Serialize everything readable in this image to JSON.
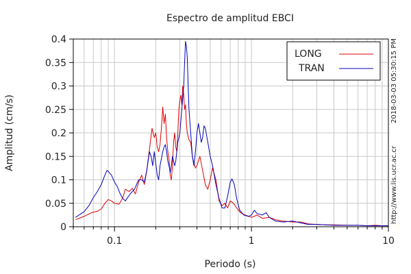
{
  "chart_data": {
    "type": "line",
    "title": "Espectro de amplitud EBCI",
    "xlabel": "Periodo (s)",
    "ylabel": "Amplitud (cm/s)",
    "xscale": "log",
    "xlim": [
      0.05,
      10
    ],
    "ylim": [
      0,
      0.4
    ],
    "x_ticks": [
      {
        "value": 0.1,
        "label": "0.1"
      },
      {
        "value": 1,
        "label": "1"
      },
      {
        "value": 10,
        "label": "10"
      }
    ],
    "y_ticks": [
      {
        "value": 0,
        "label": "0"
      },
      {
        "value": 0.05,
        "label": "0.05"
      },
      {
        "value": 0.1,
        "label": "0.1"
      },
      {
        "value": 0.15,
        "label": "0.15"
      },
      {
        "value": 0.2,
        "label": "0.2"
      },
      {
        "value": 0.25,
        "label": "0.25"
      },
      {
        "value": 0.3,
        "label": "0.3"
      },
      {
        "value": 0.35,
        "label": "0.35"
      },
      {
        "value": 0.4,
        "label": "0.4"
      }
    ],
    "grid": true,
    "legend_position": "top-right",
    "series": [
      {
        "name": "LONG",
        "color": "#dd0000",
        "points": [
          [
            0.052,
            0.015
          ],
          [
            0.06,
            0.022
          ],
          [
            0.068,
            0.03
          ],
          [
            0.075,
            0.033
          ],
          [
            0.08,
            0.038
          ],
          [
            0.085,
            0.05
          ],
          [
            0.09,
            0.058
          ],
          [
            0.095,
            0.055
          ],
          [
            0.1,
            0.05
          ],
          [
            0.108,
            0.048
          ],
          [
            0.115,
            0.062
          ],
          [
            0.12,
            0.08
          ],
          [
            0.128,
            0.075
          ],
          [
            0.135,
            0.082
          ],
          [
            0.142,
            0.07
          ],
          [
            0.15,
            0.095
          ],
          [
            0.158,
            0.11
          ],
          [
            0.165,
            0.09
          ],
          [
            0.172,
            0.12
          ],
          [
            0.18,
            0.165
          ],
          [
            0.188,
            0.21
          ],
          [
            0.195,
            0.19
          ],
          [
            0.2,
            0.2
          ],
          [
            0.205,
            0.17
          ],
          [
            0.21,
            0.16
          ],
          [
            0.215,
            0.175
          ],
          [
            0.22,
            0.21
          ],
          [
            0.225,
            0.255
          ],
          [
            0.23,
            0.22
          ],
          [
            0.235,
            0.24
          ],
          [
            0.24,
            0.19
          ],
          [
            0.245,
            0.16
          ],
          [
            0.25,
            0.145
          ],
          [
            0.255,
            0.11
          ],
          [
            0.26,
            0.1
          ],
          [
            0.265,
            0.13
          ],
          [
            0.27,
            0.18
          ],
          [
            0.275,
            0.2
          ],
          [
            0.28,
            0.17
          ],
          [
            0.285,
            0.16
          ],
          [
            0.29,
            0.2
          ],
          [
            0.295,
            0.25
          ],
          [
            0.3,
            0.27
          ],
          [
            0.305,
            0.28
          ],
          [
            0.31,
            0.26
          ],
          [
            0.315,
            0.3
          ],
          [
            0.32,
            0.28
          ],
          [
            0.325,
            0.25
          ],
          [
            0.33,
            0.26
          ],
          [
            0.335,
            0.22
          ],
          [
            0.34,
            0.2
          ],
          [
            0.35,
            0.185
          ],
          [
            0.36,
            0.18
          ],
          [
            0.37,
            0.15
          ],
          [
            0.38,
            0.135
          ],
          [
            0.39,
            0.125
          ],
          [
            0.4,
            0.13
          ],
          [
            0.42,
            0.15
          ],
          [
            0.44,
            0.12
          ],
          [
            0.46,
            0.09
          ],
          [
            0.48,
            0.08
          ],
          [
            0.5,
            0.1
          ],
          [
            0.52,
            0.125
          ],
          [
            0.55,
            0.1
          ],
          [
            0.58,
            0.055
          ],
          [
            0.61,
            0.045
          ],
          [
            0.64,
            0.05
          ],
          [
            0.67,
            0.04
          ],
          [
            0.7,
            0.055
          ],
          [
            0.74,
            0.05
          ],
          [
            0.78,
            0.04
          ],
          [
            0.83,
            0.03
          ],
          [
            0.9,
            0.025
          ],
          [
            1.0,
            0.02
          ],
          [
            1.1,
            0.025
          ],
          [
            1.2,
            0.018
          ],
          [
            1.35,
            0.02
          ],
          [
            1.5,
            0.015
          ],
          [
            1.7,
            0.012
          ],
          [
            2.0,
            0.01
          ],
          [
            2.3,
            0.01
          ],
          [
            2.6,
            0.006
          ],
          [
            3.0,
            0.005
          ],
          [
            3.5,
            0.004
          ],
          [
            4.0,
            0.004
          ],
          [
            5.0,
            0.003
          ],
          [
            6.0,
            0.003
          ],
          [
            7.0,
            0.002
          ],
          [
            8.0,
            0.003
          ],
          [
            9.0,
            0.002
          ],
          [
            10.0,
            0.002
          ]
        ]
      },
      {
        "name": "TRAN",
        "color": "#0000bb",
        "points": [
          [
            0.052,
            0.02
          ],
          [
            0.055,
            0.025
          ],
          [
            0.06,
            0.032
          ],
          [
            0.065,
            0.045
          ],
          [
            0.07,
            0.062
          ],
          [
            0.075,
            0.075
          ],
          [
            0.08,
            0.09
          ],
          [
            0.085,
            0.11
          ],
          [
            0.088,
            0.12
          ],
          [
            0.09,
            0.118
          ],
          [
            0.095,
            0.11
          ],
          [
            0.1,
            0.095
          ],
          [
            0.105,
            0.085
          ],
          [
            0.11,
            0.07
          ],
          [
            0.115,
            0.06
          ],
          [
            0.12,
            0.055
          ],
          [
            0.13,
            0.07
          ],
          [
            0.14,
            0.08
          ],
          [
            0.15,
            0.1
          ],
          [
            0.158,
            0.1
          ],
          [
            0.165,
            0.095
          ],
          [
            0.172,
            0.12
          ],
          [
            0.18,
            0.16
          ],
          [
            0.185,
            0.15
          ],
          [
            0.19,
            0.13
          ],
          [
            0.195,
            0.16
          ],
          [
            0.2,
            0.135
          ],
          [
            0.205,
            0.11
          ],
          [
            0.21,
            0.1
          ],
          [
            0.215,
            0.13
          ],
          [
            0.22,
            0.145
          ],
          [
            0.225,
            0.16
          ],
          [
            0.23,
            0.17
          ],
          [
            0.235,
            0.175
          ],
          [
            0.24,
            0.16
          ],
          [
            0.245,
            0.14
          ],
          [
            0.25,
            0.13
          ],
          [
            0.255,
            0.115
          ],
          [
            0.26,
            0.13
          ],
          [
            0.265,
            0.15
          ],
          [
            0.27,
            0.14
          ],
          [
            0.275,
            0.13
          ],
          [
            0.28,
            0.14
          ],
          [
            0.29,
            0.18
          ],
          [
            0.3,
            0.2
          ],
          [
            0.31,
            0.25
          ],
          [
            0.32,
            0.3
          ],
          [
            0.325,
            0.35
          ],
          [
            0.33,
            0.395
          ],
          [
            0.335,
            0.385
          ],
          [
            0.34,
            0.36
          ],
          [
            0.345,
            0.3
          ],
          [
            0.35,
            0.25
          ],
          [
            0.36,
            0.2
          ],
          [
            0.37,
            0.15
          ],
          [
            0.38,
            0.13
          ],
          [
            0.39,
            0.16
          ],
          [
            0.4,
            0.2
          ],
          [
            0.41,
            0.22
          ],
          [
            0.42,
            0.2
          ],
          [
            0.43,
            0.18
          ],
          [
            0.44,
            0.19
          ],
          [
            0.45,
            0.215
          ],
          [
            0.46,
            0.21
          ],
          [
            0.48,
            0.18
          ],
          [
            0.5,
            0.15
          ],
          [
            0.52,
            0.13
          ],
          [
            0.55,
            0.09
          ],
          [
            0.58,
            0.06
          ],
          [
            0.61,
            0.04
          ],
          [
            0.64,
            0.04
          ],
          [
            0.67,
            0.065
          ],
          [
            0.7,
            0.095
          ],
          [
            0.72,
            0.102
          ],
          [
            0.75,
            0.09
          ],
          [
            0.78,
            0.06
          ],
          [
            0.82,
            0.035
          ],
          [
            0.88,
            0.025
          ],
          [
            0.95,
            0.022
          ],
          [
            1.0,
            0.025
          ],
          [
            1.05,
            0.035
          ],
          [
            1.1,
            0.028
          ],
          [
            1.2,
            0.025
          ],
          [
            1.28,
            0.03
          ],
          [
            1.35,
            0.02
          ],
          [
            1.5,
            0.012
          ],
          [
            1.7,
            0.01
          ],
          [
            2.0,
            0.012
          ],
          [
            2.3,
            0.008
          ],
          [
            2.6,
            0.005
          ],
          [
            3.0,
            0.005
          ],
          [
            3.5,
            0.004
          ],
          [
            4.0,
            0.003
          ],
          [
            5.0,
            0.003
          ],
          [
            6.0,
            0.003
          ],
          [
            7.0,
            0.002
          ],
          [
            8.0,
            0.002
          ],
          [
            9.0,
            0.002
          ],
          [
            10.0,
            0.002
          ]
        ]
      }
    ],
    "side_text_top": "2018-03-03 05:30:15 PM",
    "side_text_bottom": "http://www.lis.ucr.ac.cr"
  }
}
